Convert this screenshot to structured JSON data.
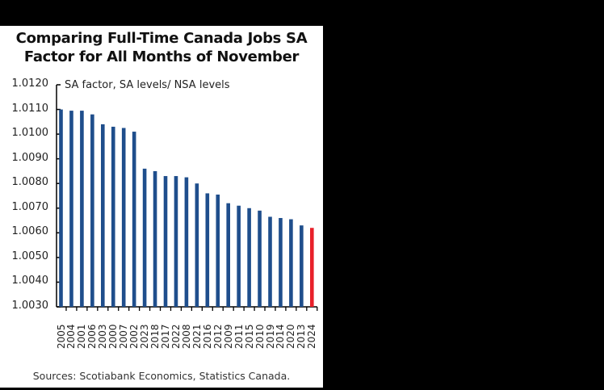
{
  "chart_data": {
    "type": "bar",
    "title": "Comparing Full-Time Canada Jobs SA Factor for All Months of November",
    "title_lines": [
      "Comparing Full-Time Canada Jobs SA",
      "Factor for All Months of November"
    ],
    "ylabel": "SA factor, SA levels/ NSA levels",
    "xlabel": "",
    "ylim": [
      1.003,
      1.012
    ],
    "yticks": [
      "1.0120",
      "1.0110",
      "1.0100",
      "1.0090",
      "1.0080",
      "1.0070",
      "1.0060",
      "1.0050",
      "1.0040",
      "1.0030"
    ],
    "categories": [
      "2005",
      "2004",
      "2001",
      "2006",
      "2003",
      "2000",
      "2007",
      "2002",
      "2023",
      "2018",
      "2017",
      "2022",
      "2008",
      "2021",
      "2016",
      "2012",
      "2009",
      "2011",
      "2015",
      "2010",
      "2019",
      "2014",
      "2020",
      "2013",
      "2024"
    ],
    "values": [
      1.011,
      1.01095,
      1.01095,
      1.0108,
      1.0104,
      1.0103,
      1.01025,
      1.0101,
      1.0086,
      1.0085,
      1.0083,
      1.0083,
      1.00825,
      1.008,
      1.0076,
      1.00755,
      1.0072,
      1.0071,
      1.007,
      1.0069,
      1.00665,
      1.0066,
      1.00655,
      1.0063,
      1.0062
    ],
    "highlight": "2024",
    "colors": {
      "bar": "#1f4e8c",
      "highlight": "#e8202a"
    },
    "grid": false,
    "legend": null
  },
  "source": "Sources: Scotiabank Economics, Statistics Canada."
}
